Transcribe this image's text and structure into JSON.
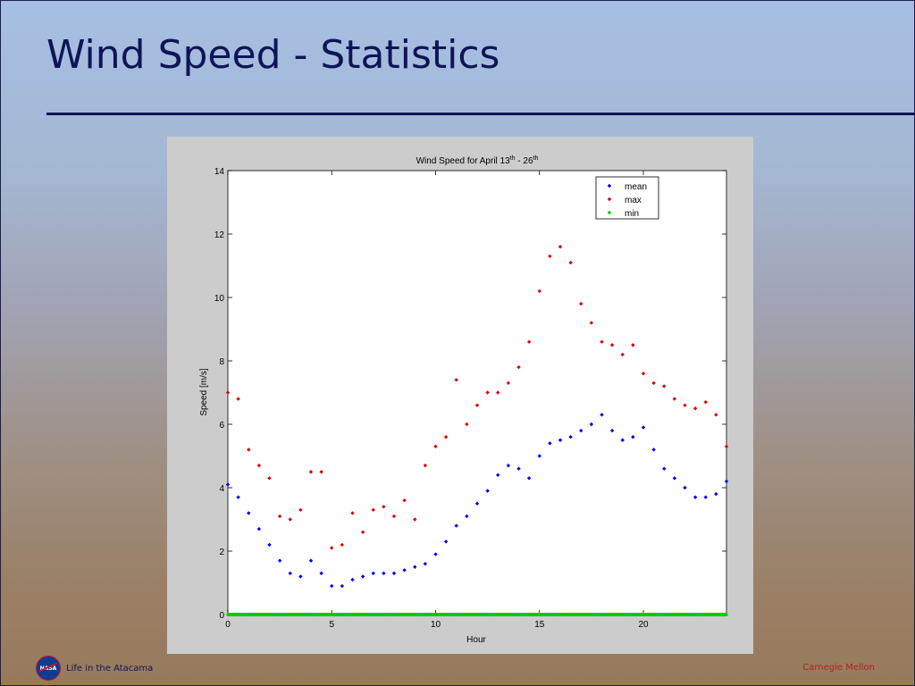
{
  "slide": {
    "title": "Wind Speed - Statistics",
    "footer_left": "Life in the Atacama",
    "footer_right": "Carnegie Mellon",
    "logo_icon": "nasa-logo-icon",
    "colors": {
      "title": "#0f1458",
      "footer_right": "#b22222",
      "panel": "#cccccc"
    }
  },
  "chart_data": {
    "type": "scatter",
    "title_main": "Wind Speed for April 13",
    "title_sup1": "th",
    "title_mid": " - 26",
    "title_sup2": "th",
    "xlabel": "Hour",
    "ylabel": "Speed [m/s]",
    "xlim": [
      0,
      24
    ],
    "ylim": [
      0,
      14
    ],
    "xticks": [
      0,
      5,
      10,
      15,
      20
    ],
    "yticks": [
      0,
      2,
      4,
      6,
      8,
      10,
      12,
      14
    ],
    "grid": false,
    "legend_position": "top-right",
    "series": [
      {
        "name": "mean",
        "color": "#0000ee",
        "x": [
          0,
          0.5,
          1,
          1.5,
          2,
          2.5,
          3,
          3.5,
          4,
          4.5,
          5,
          5.5,
          6,
          6.5,
          7,
          7.5,
          8,
          8.5,
          9,
          9.5,
          10,
          10.5,
          11,
          11.5,
          12,
          12.5,
          13,
          13.5,
          14,
          14.5,
          15,
          15.5,
          16,
          16.5,
          17,
          17.5,
          18,
          18.5,
          19,
          19.5,
          20,
          20.5,
          21,
          21.5,
          22,
          22.5,
          23,
          23.5,
          24
        ],
        "y": [
          4.1,
          3.7,
          3.2,
          2.7,
          2.2,
          1.7,
          1.3,
          1.2,
          1.7,
          1.3,
          0.9,
          0.9,
          1.1,
          1.2,
          1.3,
          1.3,
          1.3,
          1.4,
          1.5,
          1.6,
          1.9,
          2.3,
          2.8,
          3.1,
          3.5,
          3.9,
          4.4,
          4.7,
          4.6,
          4.3,
          5.0,
          5.4,
          5.5,
          5.6,
          5.8,
          6.0,
          6.3,
          5.8,
          5.5,
          5.6,
          5.9,
          5.2,
          4.6,
          4.3,
          4.0,
          3.7,
          3.7,
          3.8,
          4.2
        ]
      },
      {
        "name": "max",
        "color": "#dd0000",
        "x": [
          0,
          0.5,
          1,
          1.5,
          2,
          2.5,
          3,
          3.5,
          4,
          4.5,
          5,
          5.5,
          6,
          6.5,
          7,
          7.5,
          8,
          8.5,
          9,
          9.5,
          10,
          10.5,
          11,
          11.5,
          12,
          12.5,
          13,
          13.5,
          14,
          14.5,
          15,
          15.5,
          16,
          16.5,
          17,
          17.5,
          18,
          18.5,
          19,
          19.5,
          20,
          20.5,
          21,
          21.5,
          22,
          22.5,
          23,
          23.5,
          24
        ],
        "y": [
          7.0,
          6.8,
          5.2,
          4.7,
          4.3,
          3.1,
          3.0,
          3.3,
          4.5,
          4.5,
          2.1,
          2.2,
          3.2,
          2.6,
          3.3,
          3.4,
          3.1,
          3.6,
          3.0,
          4.7,
          5.3,
          5.6,
          7.4,
          6.0,
          6.6,
          7.0,
          7.0,
          7.3,
          7.8,
          8.6,
          10.2,
          11.3,
          11.6,
          11.1,
          9.8,
          9.2,
          8.6,
          8.5,
          8.2,
          8.5,
          7.6,
          7.3,
          7.2,
          6.8,
          6.6,
          6.5,
          6.7,
          6.3,
          5.3
        ]
      },
      {
        "name": "min",
        "color": "#00cc00",
        "x": [
          0,
          0.5,
          1,
          1.5,
          2,
          2.5,
          3,
          3.5,
          4,
          4.5,
          5,
          5.5,
          6,
          6.5,
          7,
          7.5,
          8,
          8.5,
          9,
          9.5,
          10,
          10.5,
          11,
          11.5,
          12,
          12.5,
          13,
          13.5,
          14,
          14.5,
          15,
          15.5,
          16,
          16.5,
          17,
          17.5,
          18,
          18.5,
          19,
          19.5,
          20,
          20.5,
          21,
          21.5,
          22,
          22.5,
          23,
          23.5,
          24
        ],
        "y": [
          0,
          0,
          0,
          0,
          0,
          0,
          0,
          0,
          0,
          0,
          0,
          0,
          0,
          0,
          0,
          0,
          0,
          0,
          0,
          0,
          0,
          0,
          0,
          0,
          0,
          0,
          0,
          0,
          0,
          0,
          0,
          0,
          0,
          0,
          0,
          0,
          0,
          0,
          0,
          0,
          0,
          0,
          0,
          0,
          0,
          0,
          0,
          0,
          0
        ]
      }
    ]
  }
}
